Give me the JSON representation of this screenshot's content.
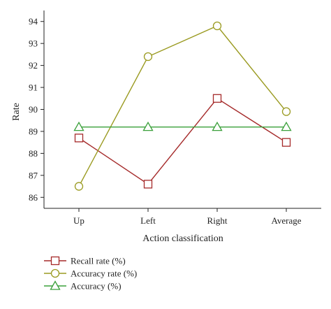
{
  "chart_data": {
    "type": "line",
    "categories": [
      "Up",
      "Left",
      "Right",
      "Average"
    ],
    "xlabel": "Action classification",
    "ylabel": "Rate",
    "ylim": [
      85.5,
      94.5
    ],
    "yticks": [
      86,
      87,
      88,
      89,
      90,
      91,
      92,
      93,
      94
    ],
    "grid": false,
    "legend_position": "bottom-left",
    "series": [
      {
        "name": "Recall rate (%)",
        "marker": "square",
        "color": "#a52a2a",
        "values": [
          88.7,
          86.6,
          90.5,
          88.5
        ]
      },
      {
        "name": "Accuracy rate (%)",
        "marker": "circle",
        "color": "#9a9a20",
        "values": [
          86.5,
          92.4,
          93.8,
          89.9
        ]
      },
      {
        "name": "Accuracy (%)",
        "marker": "triangle",
        "color": "#3aa03a",
        "values": [
          89.2,
          89.2,
          89.2,
          89.2
        ]
      }
    ]
  }
}
